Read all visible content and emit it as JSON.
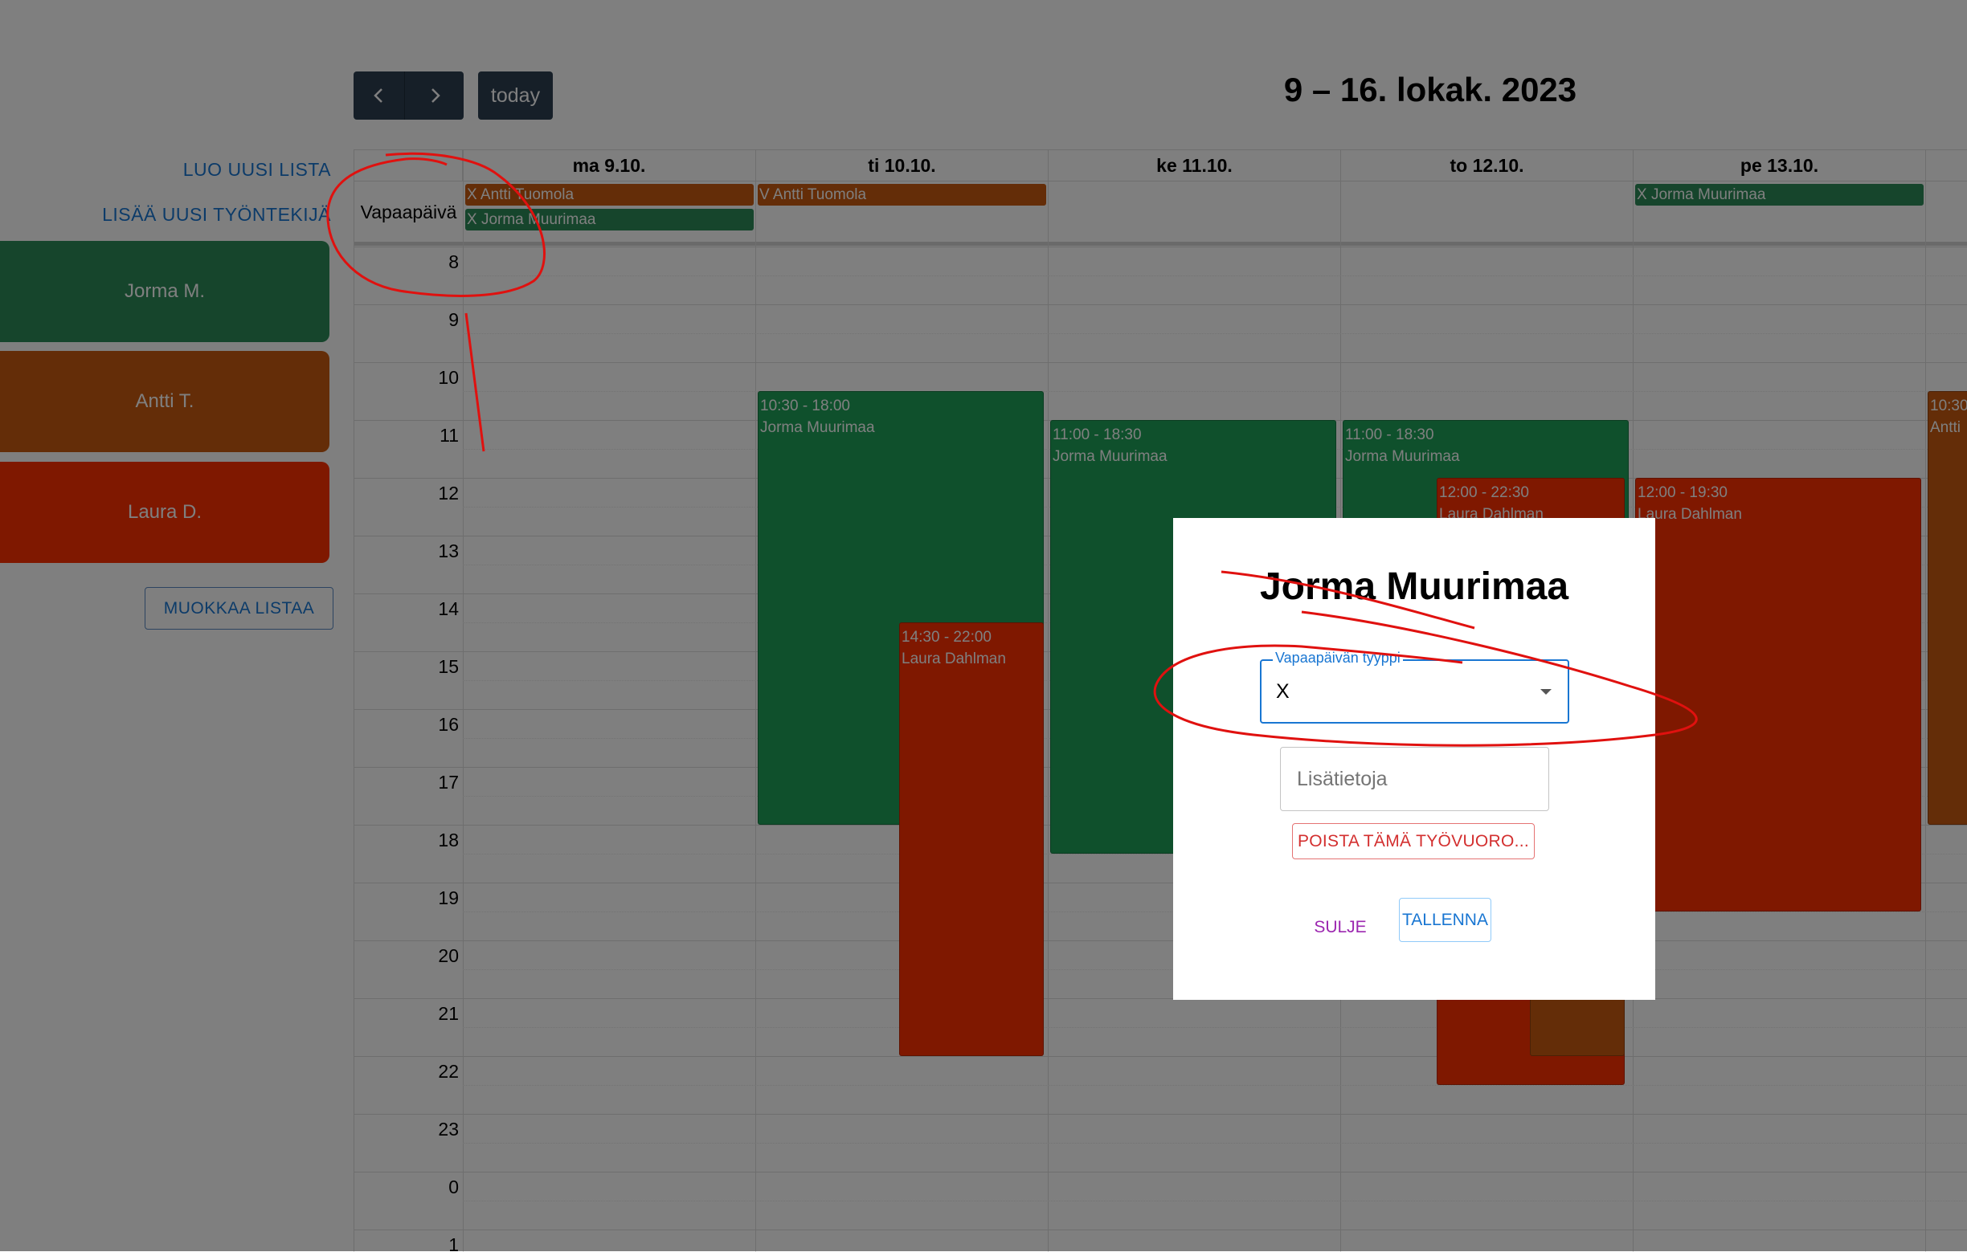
{
  "sidebar": {
    "new_list_link": "LUO UUSI LISTA",
    "add_employee_link": "LISÄÄ UUSI TYÖNTEKIJÄ",
    "employees": [
      {
        "label": "Jorma M.",
        "color": "#2c8a58"
      },
      {
        "label": "Antti T.",
        "color": "#c85a10"
      },
      {
        "label": "Laura D.",
        "color": "#ff3000"
      }
    ],
    "edit_list_button": "MUOKKAA LISTAA"
  },
  "toolbar": {
    "prev_icon": "chevron-left-icon",
    "next_icon": "chevron-right-icon",
    "today_label": "today",
    "title": "9 – 16. lokak. 2023"
  },
  "calendar": {
    "days": [
      "ma 9.10.",
      "ti 10.10.",
      "ke 11.10.",
      "to 12.10.",
      "pe 13.10."
    ],
    "allday_label": "Vapaapäivä",
    "hours": [
      "8",
      "9",
      "10",
      "11",
      "12",
      "13",
      "14",
      "15",
      "16",
      "17",
      "18",
      "19",
      "20",
      "21",
      "22",
      "23",
      "0",
      "1"
    ],
    "allday_events": [
      {
        "text": "X Antti Tuomola",
        "day": 0,
        "row": 0,
        "color": "#c85a10"
      },
      {
        "text": "X Jorma Muurimaa",
        "day": 0,
        "row": 1,
        "color": "#2c8a58"
      },
      {
        "text": "V Antti Tuomola",
        "day": 1,
        "row": 0,
        "color": "#c85a10"
      },
      {
        "text": "X Jorma Muurimaa",
        "day": 4,
        "row": 0,
        "color": "#2c8a58"
      }
    ],
    "events": [
      {
        "time": "10:30 - 18:00",
        "name": "Jorma Muurimaa",
        "day": 1,
        "start": 10.5,
        "end": 18.0,
        "lane": 0,
        "lanes": 1,
        "color": "#1fa058"
      },
      {
        "time": "14:30 - 22:00",
        "name": "Laura Dahlman",
        "day": 1,
        "start": 14.5,
        "end": 22.0,
        "lane": 1,
        "lanes": 2,
        "color": "#ff3000"
      },
      {
        "time": "11:00 - 18:30",
        "name": "Jorma Muurimaa",
        "day": 2,
        "start": 11.0,
        "end": 18.5,
        "lane": 0,
        "lanes": 1,
        "color": "#1fa058"
      },
      {
        "time": "11:00 - 18:30",
        "name": "Jorma Muurimaa",
        "day": 3,
        "start": 11.0,
        "end": 18.5,
        "lane": 0,
        "lanes": 1,
        "color": "#1fa058"
      },
      {
        "time": "12:00 - 22:30",
        "name": "Laura Dahlman",
        "day": 3,
        "start": 12.0,
        "end": 22.5,
        "lane": 1,
        "lanes": 2,
        "color": "#ff3000"
      },
      {
        "time": "",
        "name": "",
        "day": 3,
        "start": 18.5,
        "end": 22.0,
        "lane": 2,
        "lanes": 3,
        "color": "#c85a10"
      },
      {
        "time": "12:00 - 19:30",
        "name": "Laura Dahlman",
        "day": 4,
        "start": 12.0,
        "end": 19.5,
        "lane": 0,
        "lanes": 1,
        "color": "#ff3000"
      },
      {
        "time": "10:30",
        "name": "Antti",
        "day": 5,
        "start": 10.5,
        "end": 18.0,
        "lane": 0,
        "lanes": 1,
        "color": "#c85a10"
      }
    ]
  },
  "modal": {
    "title": "Jorma Muurimaa",
    "type_label": "Vapaapäivän tyyppi",
    "type_value": "X",
    "info_placeholder": "Lisätietoja",
    "delete_button": "POISTA TÄMÄ TYÖVUORO...",
    "close_button": "SULJE",
    "save_button": "TALLENNA"
  },
  "colors": {
    "annotation_red": "#e0110f"
  }
}
